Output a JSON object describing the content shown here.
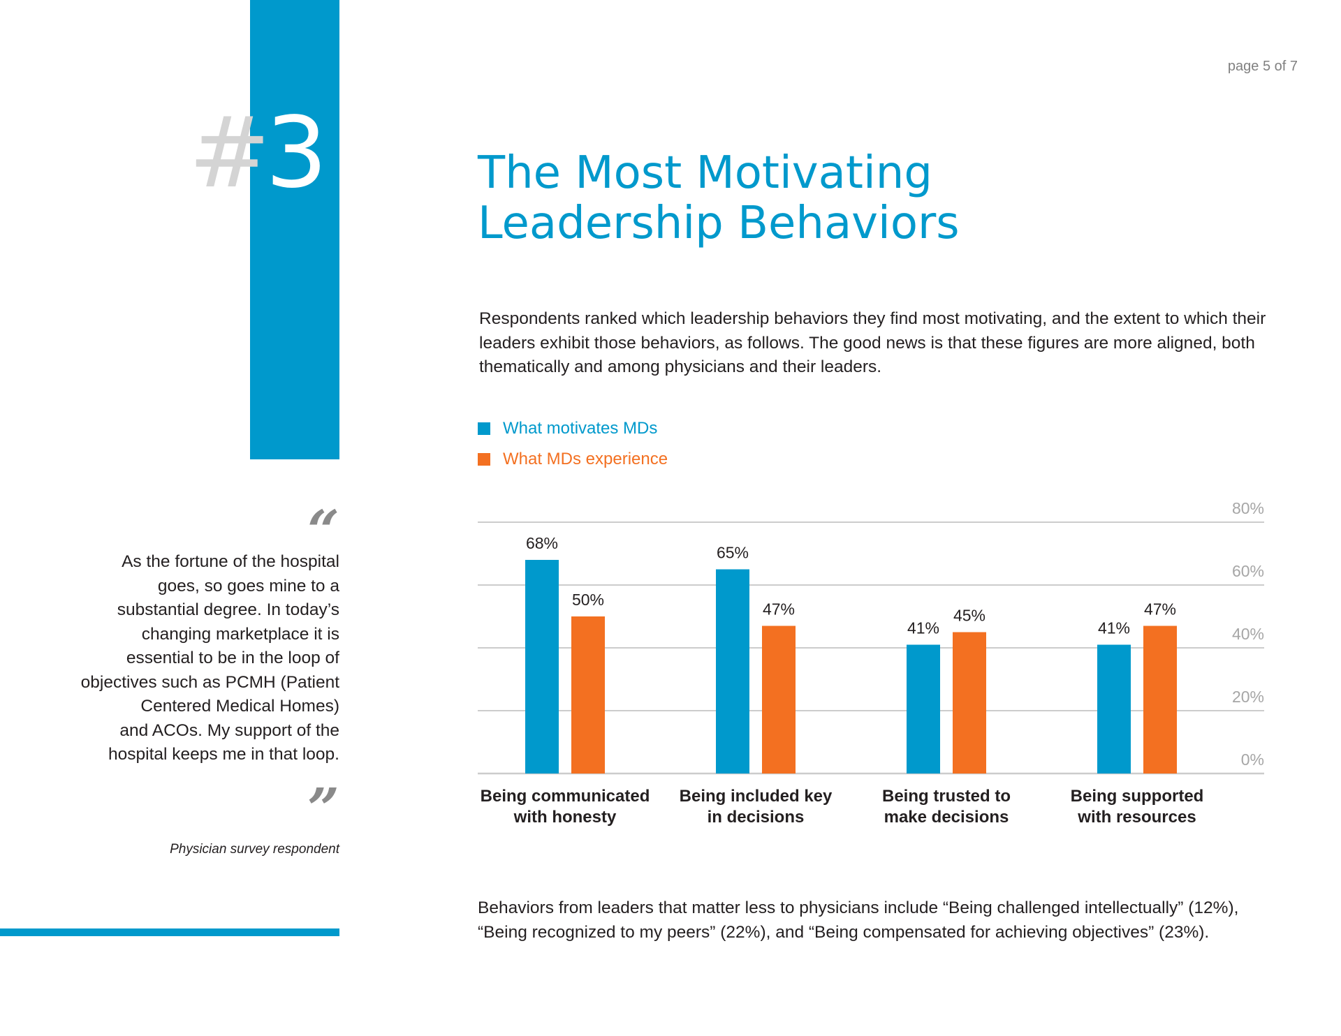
{
  "page_number": "page 5 of 7",
  "section": {
    "hash": "#",
    "number": "3"
  },
  "title_lines": [
    "The Most Motivating",
    "Leadership Behaviors"
  ],
  "intro": "Respondents ranked which leadership behaviors they find most motivating, and the extent to which their leaders exhibit those behaviors, as follows. The good news is that these figures are more aligned, both thematically and among physicians and their leaders.",
  "quote": {
    "open_mark": "“",
    "close_mark": "”",
    "lines": [
      "As the fortune of the hospital",
      "goes, so goes mine to a",
      "substantial degree. In today’s",
      "changing marketplace it is",
      "essential to be in the loop of",
      "objectives such as PCMH (Patient",
      "Centered Medical Homes)",
      "and ACOs.  My support of the",
      "hospital keeps me in that loop."
    ],
    "attribution": "Physician survey respondent"
  },
  "footnote_lines": [
    "Behaviors from leaders that matter less to physicians include “Being challenged intellectually” (12%),",
    "“Being recognized to my peers” (22%), and “Being compensated for achieving objectives” (23%)."
  ],
  "colors": {
    "blue": "#0099cc",
    "orange": "#f37021",
    "grid": "#cccccc",
    "tick": "#a6a6a6"
  },
  "chart_data": {
    "type": "bar",
    "categories": [
      [
        "Being communicated",
        "with honesty"
      ],
      [
        "Being included key",
        "in decisions"
      ],
      [
        "Being trusted to",
        "make decisions"
      ],
      [
        "Being supported",
        "with resources"
      ]
    ],
    "series": [
      {
        "name": "What motivates MDs",
        "color": "#0099cc",
        "values": [
          68,
          65,
          41,
          41
        ],
        "labels": [
          "68%",
          "65%",
          "41%",
          "41%"
        ]
      },
      {
        "name": "What MDs experience",
        "color": "#f37021",
        "values": [
          50,
          47,
          45,
          47
        ],
        "labels": [
          "50%",
          "47%",
          "45%",
          "47%"
        ]
      }
    ],
    "y_ticks": [
      {
        "value": 0,
        "label": "0%"
      },
      {
        "value": 20,
        "label": "20%"
      },
      {
        "value": 40,
        "label": "40%"
      },
      {
        "value": 60,
        "label": "60%"
      },
      {
        "value": 80,
        "label": "80%"
      }
    ],
    "ylim": [
      0,
      80
    ],
    "y_axis_side": "right",
    "grid": true,
    "legend_position": "top-left"
  }
}
